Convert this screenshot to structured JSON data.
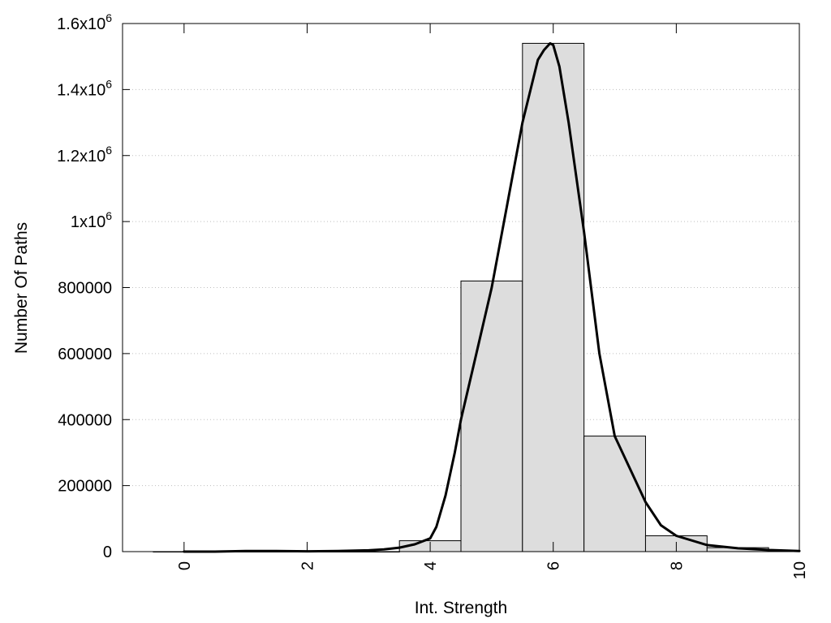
{
  "chart_data": {
    "type": "bar",
    "xlabel": "Int. Strength",
    "ylabel": "Number Of Paths",
    "xlim": [
      -1,
      10
    ],
    "ylim": [
      0,
      1600000
    ],
    "grid": {
      "horizontal": true,
      "style": "dotted"
    },
    "x_ticks": [
      {
        "value": 0,
        "label": "0"
      },
      {
        "value": 2,
        "label": "2"
      },
      {
        "value": 4,
        "label": "4"
      },
      {
        "value": 6,
        "label": "6"
      },
      {
        "value": 8,
        "label": "8"
      },
      {
        "value": 10,
        "label": "10"
      }
    ],
    "y_ticks": [
      {
        "value": 0,
        "base": "0",
        "exp": ""
      },
      {
        "value": 200000,
        "base": "200000",
        "exp": ""
      },
      {
        "value": 400000,
        "base": "400000",
        "exp": ""
      },
      {
        "value": 600000,
        "base": "600000",
        "exp": ""
      },
      {
        "value": 800000,
        "base": "800000",
        "exp": ""
      },
      {
        "value": 1000000,
        "base": "1x10",
        "exp": "6"
      },
      {
        "value": 1200000,
        "base": "1.2x10",
        "exp": "6"
      },
      {
        "value": 1400000,
        "base": "1.4x10",
        "exp": "6"
      },
      {
        "value": 1600000,
        "base": "1.6x10",
        "exp": "6"
      }
    ],
    "bar_width": 1,
    "bars": [
      {
        "x": 0,
        "value": 0
      },
      {
        "x": 1,
        "value": 0
      },
      {
        "x": 2,
        "value": 0
      },
      {
        "x": 3,
        "value": 0
      },
      {
        "x": 4,
        "value": 33000
      },
      {
        "x": 5,
        "value": 820000
      },
      {
        "x": 6,
        "value": 1540000
      },
      {
        "x": 7,
        "value": 350000
      },
      {
        "x": 8,
        "value": 48000
      },
      {
        "x": 9,
        "value": 12000
      }
    ],
    "curve": {
      "x": [
        0,
        0.5,
        1,
        1.5,
        2,
        2.5,
        3,
        3.25,
        3.5,
        3.75,
        4,
        4.1,
        4.25,
        4.4,
        4.5,
        4.75,
        5,
        5.25,
        5.5,
        5.75,
        5.85,
        5.95,
        6.0,
        6.1,
        6.25,
        6.5,
        6.75,
        7,
        7.25,
        7.5,
        7.75,
        8,
        8.5,
        9,
        9.5,
        10
      ],
      "y": [
        0,
        0,
        2000,
        2000,
        1000,
        2000,
        4000,
        7000,
        12000,
        22000,
        40000,
        75000,
        170000,
        300000,
        400000,
        600000,
        800000,
        1050000,
        1300000,
        1490000,
        1520000,
        1540000,
        1535000,
        1470000,
        1300000,
        970000,
        600000,
        350000,
        250000,
        150000,
        80000,
        48000,
        20000,
        10000,
        5000,
        2000
      ]
    }
  }
}
